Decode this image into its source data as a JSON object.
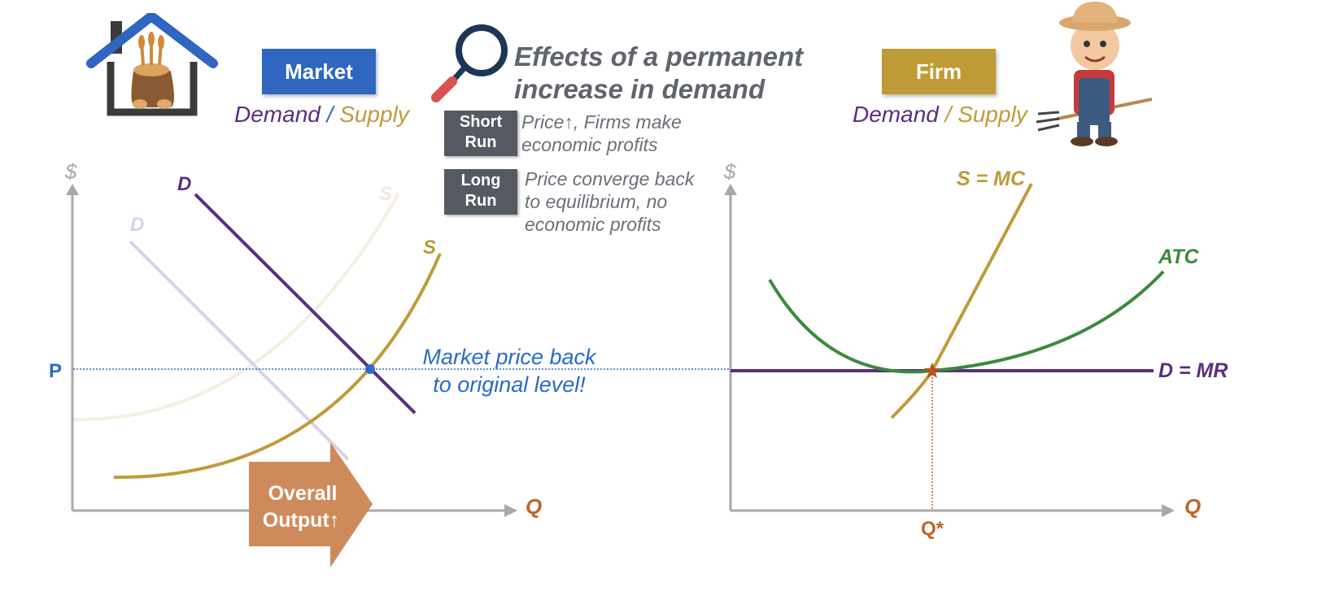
{
  "title": {
    "line1": "Effects of a permanent",
    "line2": "increase in demand"
  },
  "market": {
    "box_label": "Market",
    "subtitle_demand": "Demand",
    "subtitle_sep": " / ",
    "subtitle_supply": "Supply"
  },
  "firm": {
    "box_label": "Firm",
    "subtitle_demand": "Demand",
    "subtitle_sep": " / ",
    "subtitle_supply": "Supply"
  },
  "runs": {
    "short_run": {
      "tag_line1": "Short",
      "tag_line2": "Run",
      "text_line1": "Price↑, Firms make",
      "text_line2": "economic profits"
    },
    "long_run": {
      "tag_line1": "Long",
      "tag_line2": "Run",
      "text_line1": "Price converge back",
      "text_line2": "to equilibrium, no",
      "text_line3": "economic profits"
    }
  },
  "market_graph": {
    "y_axis_label": "$",
    "x_axis_label": "Q",
    "price_label": "P",
    "new_demand_label": "D",
    "old_demand_label": "D",
    "old_supply_label": "S",
    "new_supply_label": "S",
    "annotation_line1": "Market price back",
    "annotation_line2": "to original level!",
    "arrow_line1": "Overall",
    "arrow_line2": "Output↑"
  },
  "firm_graph": {
    "y_axis_label": "$",
    "x_axis_label": "Q",
    "mc_label": "S = MC",
    "atc_label": "ATC",
    "mr_label": "D = MR",
    "q_star_label": "Q*"
  },
  "colors": {
    "market_box": "#2f66c0",
    "firm_box": "#bf9b36",
    "demand": "#5b2d82",
    "demand_faded": "#d6d3e6",
    "supply": "#c09a3a",
    "supply_faded": "#f4efe1",
    "atc": "#3a8a3a",
    "price_line": "#2a6bc4",
    "arrow": "#cf8a5c",
    "axis": "#a8a8a8",
    "q_label": "#c0622a"
  }
}
